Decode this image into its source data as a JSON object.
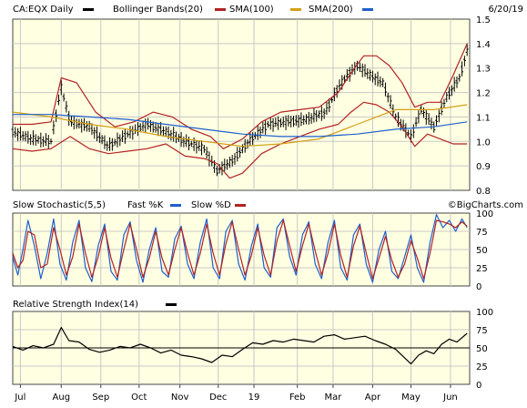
{
  "chart_data": [
    {
      "type": "line",
      "panel": "price",
      "title": "CA:EQX Daily",
      "date_label": "6/20/19",
      "legend": [
        {
          "label": "Bollinger Bands(20)",
          "color": "#b22222"
        },
        {
          "label": "SMA(100)",
          "color": "#d4a017"
        },
        {
          "label": "SMA(200)",
          "color": "#1e5fcc"
        }
      ],
      "x_axis_labels": [
        "Jul",
        "Aug",
        "Sep",
        "Oct",
        "Nov",
        "Dec",
        "19",
        "Feb",
        "Mar",
        "Apr",
        "May",
        "Jun"
      ],
      "x_axis_label_days": [
        6,
        38,
        69,
        99,
        131,
        161,
        189,
        223,
        251,
        282,
        312,
        343
      ],
      "y_ticks": [
        0.8,
        0.9,
        1.0,
        1.1,
        1.2,
        1.3,
        1.4,
        1.5
      ],
      "ylim": [
        0.8,
        1.5
      ],
      "grid": true,
      "series": [
        {
          "kind": "ohlc",
          "color": "#000000",
          "x": [
            0,
            15,
            30,
            38,
            45,
            60,
            75,
            90,
            105,
            120,
            135,
            150,
            160,
            172,
            185,
            200,
            215,
            230,
            245,
            255,
            262,
            270,
            280,
            290,
            300,
            312,
            320,
            330,
            340,
            350,
            356
          ],
          "values": [
            1.04,
            1.01,
            1.0,
            1.22,
            1.08,
            1.06,
            0.98,
            1.03,
            1.07,
            1.04,
            1.0,
            0.97,
            0.88,
            0.92,
            1.0,
            1.07,
            1.08,
            1.09,
            1.12,
            1.22,
            1.27,
            1.31,
            1.27,
            1.24,
            1.1,
            1.02,
            1.13,
            1.06,
            1.18,
            1.26,
            1.37
          ]
        },
        {
          "kind": "line",
          "name": "Bollinger Bands(20)",
          "color": "#b22222",
          "x": [
            0,
            15,
            30,
            38,
            50,
            65,
            80,
            95,
            110,
            125,
            140,
            155,
            165,
            180,
            195,
            210,
            225,
            240,
            255,
            265,
            275,
            285,
            295,
            305,
            315,
            325,
            335,
            345,
            356
          ],
          "values": [
            1.07,
            1.07,
            1.08,
            1.26,
            1.24,
            1.12,
            1.06,
            1.08,
            1.12,
            1.1,
            1.05,
            1.02,
            0.97,
            1.01,
            1.08,
            1.12,
            1.13,
            1.14,
            1.2,
            1.28,
            1.35,
            1.35,
            1.31,
            1.24,
            1.14,
            1.16,
            1.16,
            1.27,
            1.4
          ]
        },
        {
          "kind": "line",
          "name": "Bollinger Bands(20)",
          "color": "#b22222",
          "x": [
            0,
            15,
            30,
            45,
            60,
            75,
            90,
            105,
            120,
            135,
            150,
            160,
            170,
            180,
            195,
            210,
            225,
            240,
            255,
            265,
            275,
            285,
            295,
            305,
            315,
            325,
            335,
            345,
            356
          ],
          "values": [
            0.97,
            0.96,
            0.97,
            1.02,
            0.97,
            0.95,
            0.96,
            0.97,
            0.99,
            0.94,
            0.93,
            0.91,
            0.85,
            0.87,
            0.95,
            0.99,
            1.02,
            1.05,
            1.07,
            1.12,
            1.16,
            1.15,
            1.12,
            1.06,
            0.98,
            1.03,
            1.01,
            0.99,
            0.99
          ]
        },
        {
          "kind": "line",
          "name": "SMA(100)",
          "color": "#d4a017",
          "x": [
            0,
            30,
            60,
            90,
            120,
            150,
            180,
            210,
            240,
            270,
            300,
            330,
            356
          ],
          "values": [
            1.12,
            1.1,
            1.07,
            1.05,
            1.02,
            1.0,
            0.98,
            0.99,
            1.01,
            1.07,
            1.13,
            1.13,
            1.15
          ]
        },
        {
          "kind": "line",
          "name": "SMA(200)",
          "color": "#1e5fcc",
          "x": [
            0,
            30,
            60,
            90,
            120,
            150,
            180,
            210,
            240,
            270,
            300,
            330,
            356
          ],
          "values": [
            1.11,
            1.11,
            1.1,
            1.09,
            1.07,
            1.05,
            1.03,
            1.02,
            1.02,
            1.03,
            1.05,
            1.06,
            1.08
          ]
        }
      ]
    },
    {
      "type": "line",
      "panel": "stochastic",
      "title": "Slow Stochastic(5,5)",
      "legend": [
        {
          "label": "Fast %K",
          "color": "#1e5fcc"
        },
        {
          "label": "Slow %D",
          "color": "#b22222"
        }
      ],
      "watermark": "©BigCharts.com",
      "y_ticks": [
        0,
        25,
        50,
        75,
        100
      ],
      "ylim": [
        0,
        100
      ],
      "grid": true,
      "series": [
        {
          "name": "Fast %K",
          "color": "#1e5fcc",
          "x": [
            0,
            4,
            8,
            12,
            17,
            22,
            27,
            32,
            37,
            42,
            47,
            52,
            57,
            62,
            67,
            72,
            77,
            82,
            87,
            92,
            97,
            102,
            107,
            112,
            117,
            122,
            127,
            132,
            137,
            142,
            147,
            152,
            157,
            162,
            167,
            172,
            177,
            182,
            187,
            192,
            197,
            202,
            207,
            212,
            217,
            222,
            227,
            232,
            237,
            242,
            247,
            252,
            257,
            262,
            267,
            272,
            277,
            282,
            287,
            292,
            297,
            302,
            307,
            312,
            317,
            322,
            327,
            332,
            337,
            342,
            347,
            352,
            356
          ],
          "values": [
            40,
            15,
            50,
            90,
            55,
            10,
            45,
            92,
            30,
            8,
            60,
            90,
            25,
            6,
            55,
            85,
            20,
            8,
            70,
            88,
            35,
            5,
            50,
            80,
            20,
            12,
            65,
            82,
            30,
            10,
            60,
            92,
            25,
            10,
            75,
            90,
            30,
            8,
            55,
            85,
            25,
            12,
            80,
            92,
            40,
            15,
            70,
            88,
            30,
            10,
            60,
            90,
            25,
            8,
            70,
            85,
            30,
            5,
            50,
            75,
            20,
            10,
            40,
            70,
            25,
            5,
            60,
            98,
            80,
            90,
            75,
            92,
            80
          ]
        },
        {
          "name": "Slow %D",
          "color": "#b22222",
          "x": [
            0,
            4,
            8,
            12,
            17,
            22,
            27,
            32,
            37,
            42,
            47,
            52,
            57,
            62,
            67,
            72,
            77,
            82,
            87,
            92,
            97,
            102,
            107,
            112,
            117,
            122,
            127,
            132,
            137,
            142,
            147,
            152,
            157,
            162,
            167,
            172,
            177,
            182,
            187,
            192,
            197,
            202,
            207,
            212,
            217,
            222,
            227,
            232,
            237,
            242,
            247,
            252,
            257,
            262,
            267,
            272,
            277,
            282,
            287,
            292,
            297,
            302,
            307,
            312,
            317,
            322,
            327,
            332,
            337,
            342,
            347,
            352,
            356
          ],
          "values": [
            45,
            25,
            35,
            75,
            70,
            25,
            30,
            80,
            50,
            15,
            40,
            85,
            45,
            12,
            40,
            80,
            38,
            12,
            50,
            85,
            50,
            12,
            38,
            75,
            38,
            15,
            50,
            80,
            45,
            15,
            45,
            85,
            45,
            15,
            58,
            88,
            50,
            15,
            42,
            80,
            42,
            15,
            62,
            90,
            55,
            20,
            55,
            85,
            48,
            15,
            45,
            85,
            42,
            12,
            55,
            82,
            45,
            10,
            38,
            68,
            35,
            12,
            30,
            62,
            38,
            10,
            45,
            90,
            88,
            85,
            80,
            88,
            82
          ]
        }
      ]
    },
    {
      "type": "line",
      "panel": "rsi",
      "title": "Relative Strength Index(14)",
      "legend": [
        {
          "label": "",
          "color": "#000000"
        }
      ],
      "y_ticks": [
        0,
        25,
        50,
        75,
        100
      ],
      "ylim": [
        0,
        100
      ],
      "reference_line": 50,
      "grid": true,
      "series": [
        {
          "name": "",
          "color": "#000000",
          "x": [
            0,
            8,
            16,
            24,
            32,
            38,
            44,
            52,
            60,
            68,
            76,
            84,
            92,
            100,
            108,
            116,
            124,
            132,
            140,
            148,
            156,
            164,
            172,
            180,
            188,
            196,
            204,
            212,
            220,
            228,
            236,
            244,
            252,
            260,
            268,
            276,
            284,
            292,
            300,
            306,
            312,
            318,
            324,
            330,
            336,
            342,
            348,
            356
          ],
          "values": [
            52,
            47,
            53,
            50,
            55,
            78,
            60,
            58,
            48,
            44,
            47,
            52,
            50,
            55,
            50,
            43,
            47,
            40,
            38,
            35,
            30,
            40,
            38,
            48,
            57,
            55,
            60,
            58,
            62,
            60,
            58,
            66,
            68,
            62,
            64,
            66,
            60,
            55,
            48,
            38,
            28,
            40,
            46,
            42,
            55,
            62,
            58,
            70
          ]
        }
      ]
    }
  ]
}
